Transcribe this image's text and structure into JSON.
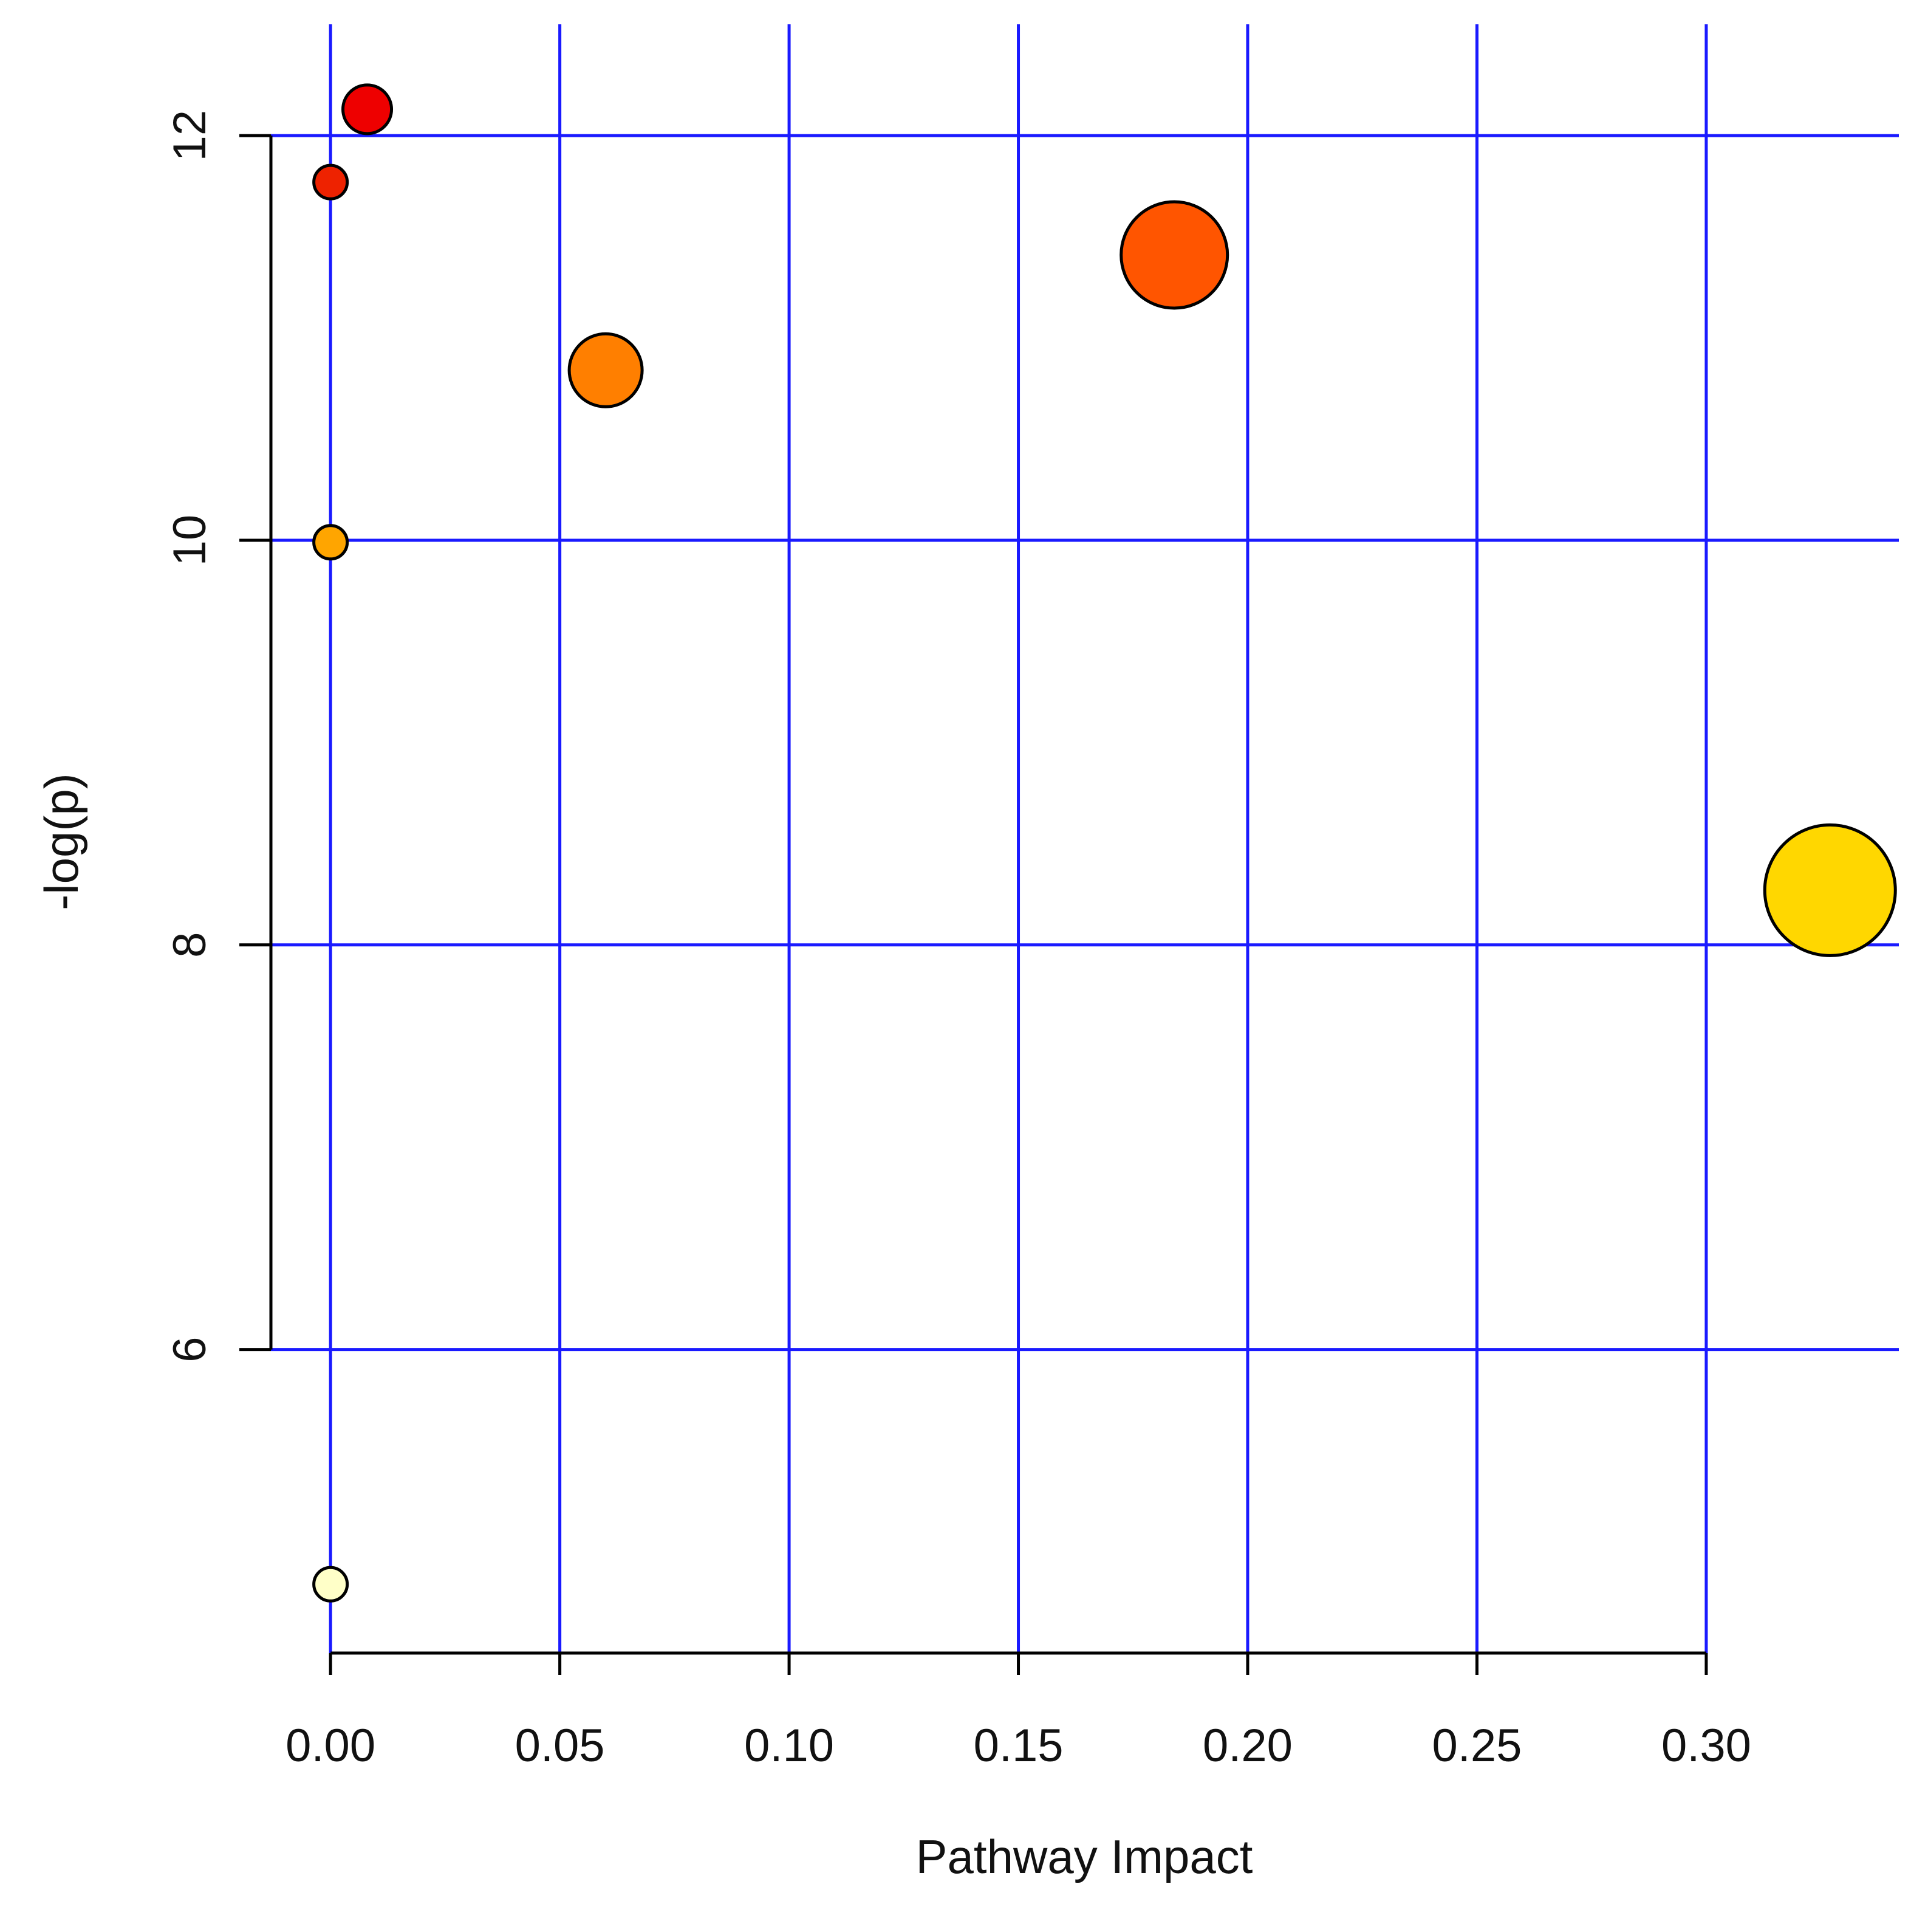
{
  "chart_data": {
    "type": "scatter",
    "title": "",
    "xlabel": "Pathway Impact",
    "ylabel": "-log(p)",
    "xlim": [
      -0.013,
      0.342
    ],
    "ylim": [
      4.5,
      12.55
    ],
    "x_ticks": [
      0.0,
      0.05,
      0.1,
      0.15,
      0.2,
      0.25,
      0.3
    ],
    "x_tick_labels": [
      "0.00",
      "0.05",
      "0.10",
      "0.15",
      "0.20",
      "0.25",
      "0.30"
    ],
    "y_ticks": [
      6,
      8,
      10,
      12
    ],
    "y_tick_labels": [
      "6",
      "8",
      "10",
      "12"
    ],
    "grid": true,
    "grid_color": "#1a1aff",
    "series": [
      {
        "points": [
          {
            "x": 0.008,
            "y": 12.13,
            "bubble_size": 1.6,
            "color": "#ee0000"
          },
          {
            "x": 0.0,
            "y": 11.77,
            "bubble_size": 1.1,
            "color": "#ee2200"
          },
          {
            "x": 0.184,
            "y": 11.41,
            "bubble_size": 3.5,
            "color": "#ff5500"
          },
          {
            "x": 0.06,
            "y": 10.84,
            "bubble_size": 2.4,
            "color": "#ff7f00"
          },
          {
            "x": 0.0,
            "y": 9.99,
            "bubble_size": 1.1,
            "color": "#ffa500"
          },
          {
            "x": 0.327,
            "y": 8.27,
            "bubble_size": 4.3,
            "color": "#ffd700"
          },
          {
            "x": 0.0,
            "y": 4.84,
            "bubble_size": 1.1,
            "color": "#ffffc8"
          }
        ]
      }
    ]
  }
}
